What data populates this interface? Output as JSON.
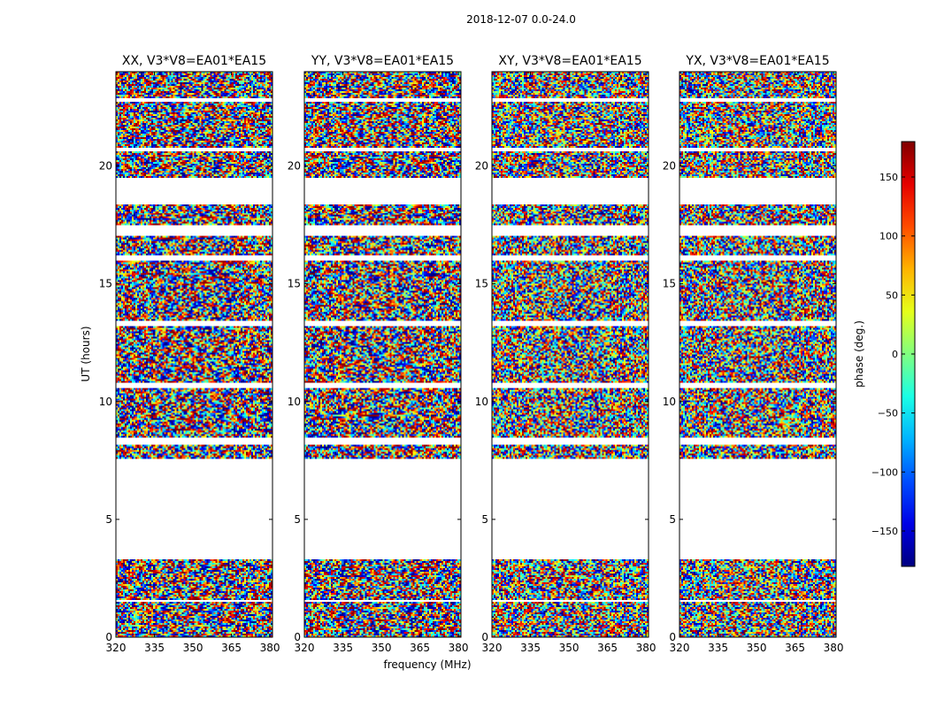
{
  "suptitle": "2018-12-07 0.0-24.0",
  "chart_data": {
    "type": "heatmap",
    "xlabel": "frequency (MHz)",
    "ylabel": "UT (hours)",
    "xlim": [
      320,
      381
    ],
    "ylim": [
      0,
      24
    ],
    "xticks": [
      320,
      335,
      350,
      365,
      380
    ],
    "yticks": [
      0,
      5,
      10,
      15,
      20
    ],
    "panels": [
      {
        "title": "XX, V3*V8=EA01*EA15",
        "polarization": "XX"
      },
      {
        "title": "YY, V3*V8=EA01*EA15",
        "polarization": "YY"
      },
      {
        "title": "XY, V3*V8=EA01*EA15",
        "polarization": "XY"
      },
      {
        "title": "YX, V3*V8=EA01*EA15",
        "polarization": "YX"
      }
    ],
    "data_gaps_ut_hours": [
      [
        1.5,
        1.6
      ],
      [
        3.3,
        7.6
      ],
      [
        8.2,
        8.5
      ],
      [
        10.6,
        10.8
      ],
      [
        13.2,
        13.4
      ],
      [
        16.0,
        16.2
      ],
      [
        17.0,
        17.5
      ],
      [
        18.4,
        19.5
      ],
      [
        20.6,
        20.8
      ],
      [
        22.7,
        22.9
      ]
    ],
    "colorbar": {
      "label": "phase (deg.)",
      "range": [
        -180,
        180
      ],
      "ticks": [
        -150,
        -100,
        -50,
        0,
        50,
        100,
        150
      ],
      "tick_labels": [
        "−150",
        "−100",
        "−50",
        "0",
        "50",
        "100",
        "150"
      ],
      "colormap": "jet"
    }
  }
}
